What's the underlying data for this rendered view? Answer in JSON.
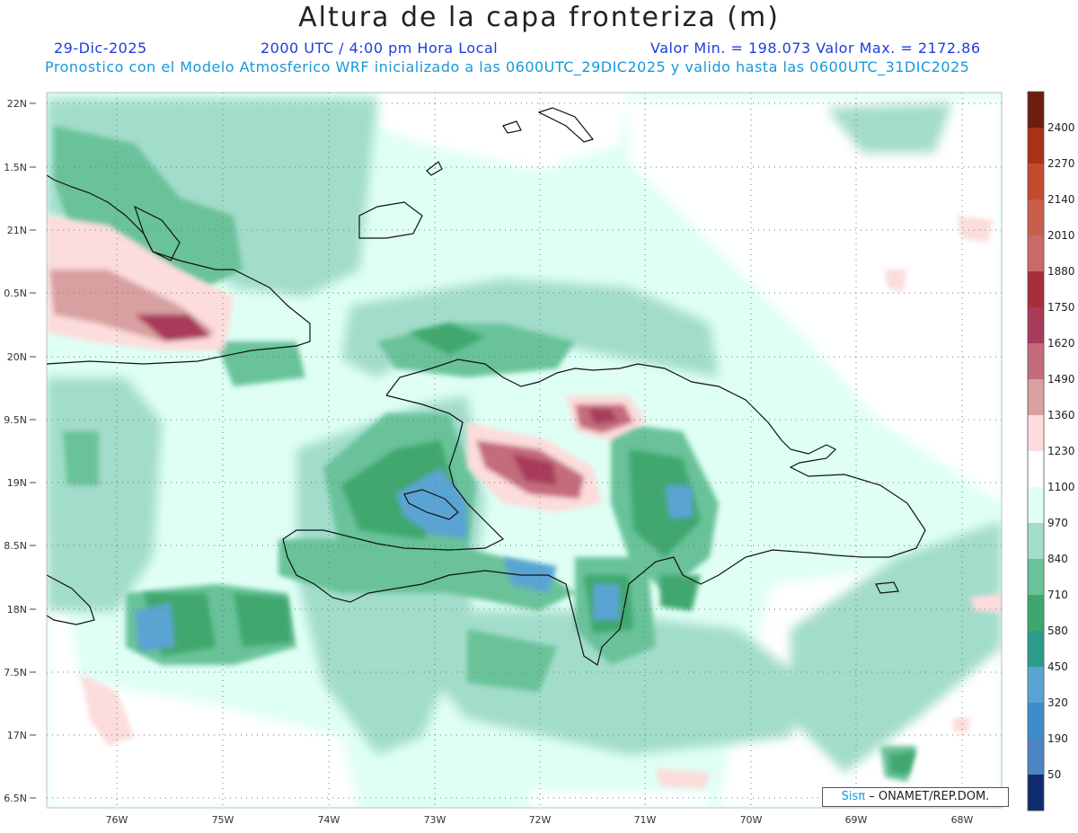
{
  "header": {
    "title": "Altura de la capa fronteriza (m)",
    "date": "29-Dic-2025",
    "time": "2000 UTC / 4:00 pm Hora Local",
    "minmax": "Valor Min. = 198.073  Valor Max. = 2172.86",
    "subtitle": "Pronostico con el Modelo Atmosferico WRF inicializado a las 0600UTC_29DIC2025 y valido hasta las  0600UTC_31DIC2025"
  },
  "axes": {
    "lat_labels": [
      "22N",
      "1.5N",
      "21N",
      "0.5N",
      "20N",
      "9.5N",
      "19N",
      "8.5N",
      "18N",
      "7.5N",
      "17N",
      "6.5N"
    ],
    "lon_labels": [
      "76W",
      "75W",
      "74W",
      "73W",
      "72W",
      "71W",
      "70W",
      "69W",
      "68W"
    ]
  },
  "colorbar": {
    "labels": [
      "2400",
      "2270",
      "2140",
      "2010",
      "1880",
      "1750",
      "1620",
      "1490",
      "1360",
      "1230",
      "1100",
      "970",
      "840",
      "710",
      "580",
      "450",
      "320",
      "190",
      "50"
    ],
    "colors": [
      "#6b1f0c",
      "#a83217",
      "#c44a2c",
      "#c85e4c",
      "#c86a6a",
      "#a82e3b",
      "#a83a5a",
      "#c46c7c",
      "#d8a0a0",
      "#fcdcdc",
      "#ffffff",
      "#dffff5",
      "#a2dccb",
      "#69c29a",
      "#3fa76e",
      "#2c9c8b",
      "#5aa4d4",
      "#3c8ccc",
      "#4c84c4",
      "#0e2c6e"
    ]
  },
  "credit": {
    "logo": "Sisπ",
    "text": "– ONAMET/REP.DOM."
  }
}
